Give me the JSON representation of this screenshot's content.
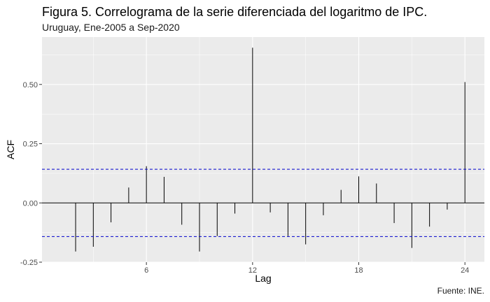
{
  "chart_data": {
    "type": "bar",
    "title": "Figura 5. Correlograma de la serie diferenciada del logaritmo de IPC.",
    "subtitle": "Uruguay, Ene-2005 a Sep-2020",
    "caption": "Fuente: INE.",
    "xlabel": "Lag",
    "ylabel": "ACF",
    "x": [
      1,
      2,
      3,
      4,
      5,
      6,
      7,
      8,
      9,
      10,
      11,
      12,
      13,
      14,
      15,
      16,
      17,
      18,
      19,
      20,
      21,
      22,
      23,
      24
    ],
    "values": [
      0.0,
      -0.205,
      -0.185,
      -0.082,
      0.065,
      0.155,
      0.11,
      -0.092,
      -0.205,
      -0.14,
      -0.045,
      0.655,
      -0.04,
      -0.14,
      -0.175,
      -0.052,
      0.055,
      0.112,
      0.082,
      -0.085,
      -0.19,
      -0.1,
      -0.028,
      0.51
    ],
    "conf_limit": 0.142,
    "xlim": [
      0.1,
      25.1
    ],
    "ylim": [
      -0.25,
      0.7
    ],
    "xticks": [
      6,
      12,
      18,
      24
    ],
    "xtick_labels": [
      "6",
      "12",
      "18",
      "24"
    ],
    "yticks": [
      -0.25,
      0.0,
      0.25,
      0.5
    ],
    "ytick_labels": [
      "-0.25",
      "0.00",
      "0.25",
      "0.50"
    ],
    "grid": true,
    "colors": {
      "panel": "#ebebeb",
      "grid_major": "#ffffff",
      "bars": "#000000",
      "conf_lines": "#0000cc"
    }
  }
}
